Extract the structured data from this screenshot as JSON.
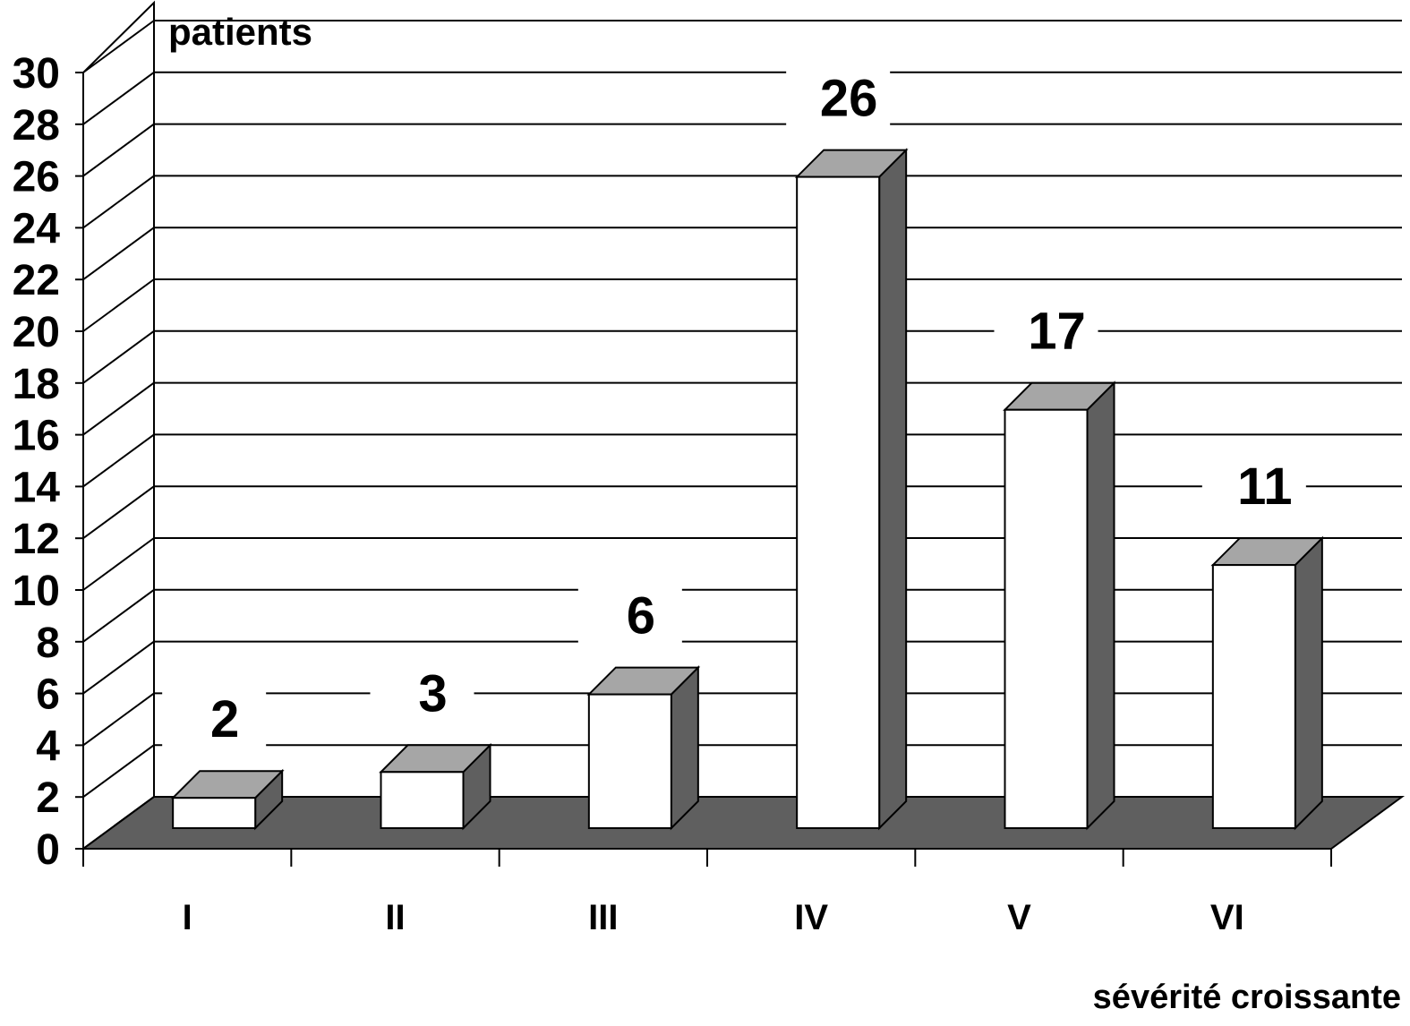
{
  "chart_data": {
    "type": "bar",
    "style": "3d-column",
    "ylabel": "patients",
    "xlabel": "sévérité croissante",
    "categories": [
      "I",
      "II",
      "III",
      "IV",
      "V",
      "VI"
    ],
    "values": [
      2,
      3,
      6,
      26,
      17,
      11
    ],
    "data_labels": [
      "2",
      "3",
      "6",
      "26",
      "17",
      "11"
    ],
    "ylim": [
      0,
      30
    ],
    "yticks": [
      0,
      2,
      4,
      6,
      8,
      10,
      12,
      14,
      16,
      18,
      20,
      22,
      24,
      26,
      28,
      30
    ],
    "grid": true,
    "legend": "none",
    "colors": {
      "bar_front": "#ffffff",
      "bar_top": "#a6a6a6",
      "bar_side": "#5f5f5f",
      "floor": "#5f5f5f",
      "grid": "#000000"
    }
  }
}
